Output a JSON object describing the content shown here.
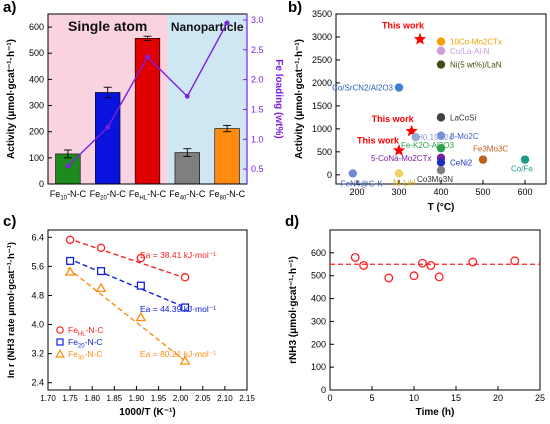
{
  "chart_data": [
    {
      "panel": "a)",
      "type": "bar",
      "categories": [
        "Fe10-N-C",
        "Fe20-N-C",
        "FeHL-N-C",
        "Fe40-N-C",
        "Fe80-N-C"
      ],
      "tick_labels": [
        {
          "base": "Fe",
          "sub": "10",
          "rest": "-N-C"
        },
        {
          "base": "Fe",
          "sub": "20",
          "rest": "-N-C"
        },
        {
          "base": "Fe",
          "sub": "HL",
          "rest": "-N-C"
        },
        {
          "base": "Fe",
          "sub": "40",
          "rest": "-N-C"
        },
        {
          "base": "Fe",
          "sub": "80",
          "rest": "-N-C"
        }
      ],
      "values": [
        115,
        350,
        557,
        120,
        212
      ],
      "errors": [
        15,
        20,
        8,
        15,
        12
      ],
      "bar_colors": [
        "#1e8a1e",
        "#0a12dd",
        "#e00000",
        "#7f7f7f",
        "#ff8c10"
      ],
      "ylabel": "Activity (μmol·gcat⁻¹·h⁻¹)",
      "ylim": [
        0,
        650
      ],
      "yticks": [
        0,
        100,
        200,
        300,
        400,
        500,
        600
      ],
      "y2label": "Fe loading (wt%)",
      "y2lim": [
        0.25,
        3.1
      ],
      "y2ticks": [
        "0.5",
        "1.0",
        "1.5",
        "2.0",
        "2.5",
        "3.0"
      ],
      "series2": {
        "name": "Fe loading",
        "values": [
          0.55,
          1.2,
          2.38,
          1.72,
          2.95
        ],
        "color": "#7b1fe0"
      },
      "regions": [
        {
          "label": "Single atom",
          "from": 0,
          "to": 3,
          "color": "#f9d3e0"
        },
        {
          "label": "Nanoparticle",
          "from": 3,
          "to": 5,
          "color": "#cfe6f3"
        }
      ]
    },
    {
      "panel": "b)",
      "type": "scatter",
      "xlabel": "T (°C)",
      "ylabel": "Activity (μmol·gcat⁻¹·h⁻¹)",
      "xlim": [
        150,
        650
      ],
      "ylim": [
        -200,
        3500
      ],
      "xticks": [
        200,
        300,
        400,
        500,
        600
      ],
      "yticks": [
        0,
        500,
        1000,
        1500,
        2000,
        2500,
        3000,
        3500
      ],
      "points": [
        {
          "x": 350,
          "y": 2950,
          "marker": "star",
          "color": "#ff0000",
          "label": "This work",
          "label_color": "#ff0000",
          "bold": true
        },
        {
          "x": 330,
          "y": 950,
          "marker": "star",
          "color": "#ff0000",
          "label": "This work",
          "label_color": "#ff0000",
          "bold": true
        },
        {
          "x": 300,
          "y": 530,
          "marker": "star",
          "color": "#ff0000",
          "label": "This work",
          "label_color": "#ff0000",
          "bold": true
        },
        {
          "x": 400,
          "y": 2900,
          "marker": "circle",
          "color": "#f0a000",
          "label": "10Co-Mo2CTx",
          "label_color": "#f0a000"
        },
        {
          "x": 400,
          "y": 2700,
          "marker": "circle",
          "color": "#c9a0dc",
          "label": "Co/La-Al-N",
          "label_color": "#c9a0dc"
        },
        {
          "x": 400,
          "y": 2400,
          "marker": "circle",
          "color": "#4a4a14",
          "label": "Ni(5 wt%)/LaN",
          "label_color": "#4a4a14"
        },
        {
          "x": 300,
          "y": 1900,
          "marker": "circle",
          "color": "#3b82d6",
          "label": "Co/SrCN2/Al2O3",
          "label_color": "#1f5fb5"
        },
        {
          "x": 400,
          "y": 1250,
          "marker": "circle",
          "color": "#404040",
          "label": "LaCoSi",
          "label_color": "#333333"
        },
        {
          "x": 400,
          "y": 850,
          "marker": "circle",
          "color": "#6f8fd8",
          "label": "β-Mo2C",
          "label_color": "#3a5ec0"
        },
        {
          "x": 340,
          "y": 820,
          "marker": "circle",
          "color": "#9ab0d8",
          "label": "KH0.19C24",
          "label_color": "#8aa0c8"
        },
        {
          "x": 400,
          "y": 580,
          "marker": "circle",
          "color": "#2aa050",
          "label": "Fe-K2O-Al2O3",
          "label_color": "#2aa050"
        },
        {
          "x": 400,
          "y": 370,
          "marker": "circle",
          "color": "#7a1fa0",
          "label": "5-CoNa-Mo2CTx",
          "label_color": "#7a1fa0"
        },
        {
          "x": 400,
          "y": 270,
          "marker": "circle",
          "color": "#1a2fc0",
          "label": "CeNi2",
          "label_color": "#1a2fc0"
        },
        {
          "x": 400,
          "y": 100,
          "marker": "circle",
          "color": "#808080",
          "label": "Co3Mo3N",
          "label_color": "#333333"
        },
        {
          "x": 500,
          "y": 330,
          "marker": "circle",
          "color": "#c06020",
          "label": "Fe3Mo3C",
          "label_color": "#c06020"
        },
        {
          "x": 600,
          "y": 330,
          "marker": "circle",
          "color": "#1f9a8a",
          "label": "Co/Fe",
          "label_color": "#1f9a8a"
        },
        {
          "x": 300,
          "y": 30,
          "marker": "circle",
          "color": "#f0d060",
          "label": "Ni-LiH",
          "label_color": "#e0b000"
        },
        {
          "x": 190,
          "y": 30,
          "marker": "circle",
          "color": "#6f88d8",
          "label": "FeN4@G-K",
          "label_color": "#3a5ec0"
        }
      ]
    },
    {
      "panel": "c)",
      "type": "scatter",
      "xlabel": "1000/T (K⁻¹)",
      "ylabel": "ln r (NH3 rate μmol·gcat⁻¹·h⁻¹)",
      "xlim": [
        1.7,
        2.15
      ],
      "ylim": [
        2.2,
        6.6
      ],
      "xticks": [
        "1.70",
        "1.75",
        "1.80",
        "1.85",
        "1.90",
        "1.95",
        "2.00",
        "2.05",
        "2.10",
        "2.15"
      ],
      "yticks": [
        "2.4",
        "3.2",
        "4.0",
        "4.8",
        "5.6",
        "6.4"
      ],
      "series": [
        {
          "name": "FeHL-N-C",
          "legend": {
            "base": "Fe",
            "sub": "HL",
            "rest": "-N-C"
          },
          "marker": "circle",
          "color": "#ff2020",
          "x": [
            1.75,
            1.82,
            1.91,
            2.01
          ],
          "y": [
            6.33,
            6.11,
            5.83,
            5.3
          ],
          "fit": [
            [
              1.745,
              6.37
            ],
            [
              2.015,
              5.26
            ]
          ],
          "ea": "Ea = 38.41 kJ·mol⁻¹"
        },
        {
          "name": "Fe20-N-C",
          "legend": {
            "base": "Fe",
            "sub": "20",
            "rest": "-N-C"
          },
          "marker": "square",
          "color": "#1020e0",
          "x": [
            1.75,
            1.82,
            1.91,
            2.01
          ],
          "y": [
            5.75,
            5.47,
            5.07,
            4.47
          ],
          "fit": [
            [
              1.745,
              5.82
            ],
            [
              2.015,
              4.45
            ]
          ],
          "ea": "Ea = 44.39 kJ·mol⁻¹"
        },
        {
          "name": "Fe40-N-C",
          "legend": {
            "base": "Fe",
            "sub": "40",
            "rest": "-N-C"
          },
          "marker": "triangle",
          "color": "#ff8c10",
          "x": [
            1.75,
            1.82,
            1.91,
            2.01
          ],
          "y": [
            5.45,
            5.0,
            4.2,
            3.0
          ],
          "fit": [
            [
              1.745,
              5.55
            ],
            [
              2.015,
              2.95
            ]
          ],
          "ea": "Ea = 80.21 kJ·mol⁻¹"
        }
      ]
    },
    {
      "panel": "d)",
      "type": "scatter",
      "xlabel": "Time (h)",
      "ylabel": "rNH3 (μmol·gcat⁻¹·h⁻¹)",
      "xlim": [
        0,
        25
      ],
      "ylim": [
        0,
        700
      ],
      "xticks": [
        0,
        5,
        10,
        15,
        20,
        25
      ],
      "yticks": [
        0,
        100,
        200,
        300,
        400,
        500,
        600
      ],
      "series": [
        {
          "name": "",
          "marker": "open-circle",
          "color": "#ff2020",
          "x": [
            3,
            4,
            7,
            10,
            11,
            12,
            13,
            17,
            22
          ],
          "y": [
            580,
            545,
            490,
            500,
            555,
            545,
            495,
            560,
            565
          ]
        }
      ],
      "reference_line": {
        "y": 550,
        "color": "#ff2020",
        "style": "dashed"
      }
    }
  ]
}
